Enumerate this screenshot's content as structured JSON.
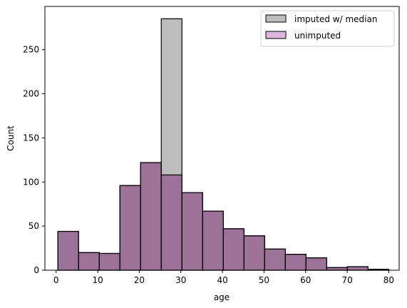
{
  "chart_data": {
    "type": "bar",
    "subtype": "overlaid histogram",
    "title": "",
    "xlabel": "age",
    "ylabel": "Count",
    "xlim": [
      -2.7,
      82.5
    ],
    "ylim": [
      0,
      299
    ],
    "xticks": [
      0,
      10,
      20,
      30,
      40,
      50,
      60,
      70,
      80
    ],
    "yticks": [
      0,
      50,
      100,
      150,
      200,
      250
    ],
    "bin_edges": [
      0.42,
      5.39,
      10.37,
      15.34,
      20.31,
      25.29,
      30.26,
      35.23,
      40.21,
      45.18,
      50.15,
      55.13,
      60.1,
      65.07,
      70.05,
      75.02,
      80.0
    ],
    "grid": false,
    "legend_position": "top-right",
    "series": [
      {
        "name": "imputed w/ median",
        "color": "#bdbdbd",
        "values": [
          44,
          20,
          19,
          96,
          122,
          285,
          88,
          67,
          47,
          39,
          24,
          18,
          14,
          3,
          4,
          1
        ]
      },
      {
        "name": "unimputed",
        "color": "#ddb5dd",
        "values": [
          44,
          20,
          19,
          96,
          122,
          108,
          88,
          67,
          47,
          39,
          24,
          18,
          14,
          3,
          4,
          1
        ]
      }
    ]
  }
}
